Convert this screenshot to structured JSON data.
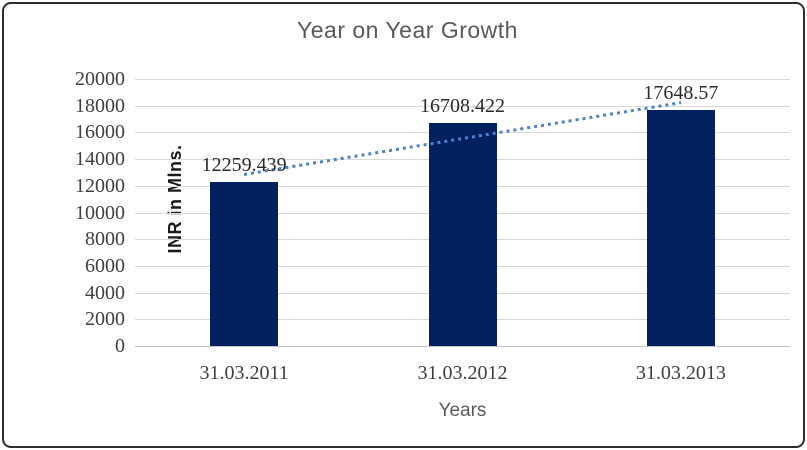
{
  "chart_data": {
    "type": "bar",
    "title": "Year on Year Growth",
    "xlabel": "Years",
    "ylabel": "INR in Mlns.",
    "categories": [
      "31.03.2011",
      "31.03.2012",
      "31.03.2013"
    ],
    "values": [
      12259.439,
      16708.422,
      17648.57
    ],
    "data_labels": [
      "12259.439",
      "16708.422",
      "17648.57"
    ],
    "ylim": [
      0,
      20000
    ],
    "yticks": [
      0,
      2000,
      4000,
      6000,
      8000,
      10000,
      12000,
      14000,
      16000,
      18000,
      20000
    ],
    "grid": true,
    "legend": "none",
    "bar_color": "#02215e",
    "trendline": {
      "type": "linear",
      "style": "dotted",
      "color": "#4d82cc",
      "start_value": 12850,
      "end_value": 18230
    },
    "colors": {
      "title_text": "#595959",
      "tick_text": "#404040",
      "gridline": "#d9d9d9",
      "axis_line": "#bfbfbf"
    }
  }
}
